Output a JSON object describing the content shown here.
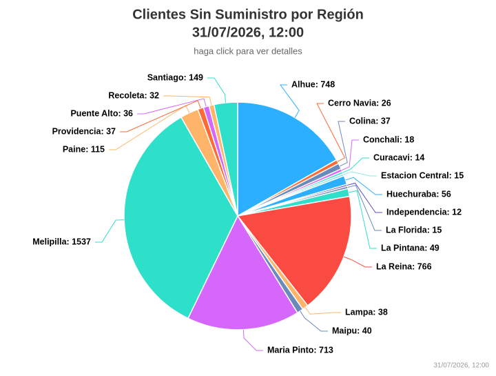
{
  "chart_data": {
    "type": "pie",
    "title_lines": [
      "Clientes Sin Suministro por Región",
      "31/07/2026, 12:00"
    ],
    "subtitle": "haga click para ver detalles",
    "credits": "31/07/2026, 12:00",
    "categories": [
      "Alhue",
      "Cerro Navia",
      "Colina",
      "Conchali",
      "Curacavi",
      "Estacion Central",
      "Huechuraba",
      "Independencia",
      "La Florida",
      "La Pintana",
      "La Reina",
      "Lampa",
      "Maipu",
      "Maria Pinto",
      "Melipilla",
      "Paine",
      "Providencia",
      "Puente Alto",
      "Recoleta",
      "Santiago"
    ],
    "values": [
      748,
      26,
      37,
      18,
      14,
      15,
      56,
      12,
      15,
      49,
      766,
      38,
      40,
      713,
      1537,
      115,
      37,
      36,
      32,
      149
    ],
    "value_labels": [
      "Alhue: 748",
      "Cerro Navia: 26",
      "Colina: 37",
      "Conchali: 18",
      "Curacavi: 14",
      "Estacion Central: 15",
      "Huechuraba: 56",
      "Independencia: 12",
      "La Florida: 15",
      "La Pintana: 49",
      "La Reina: 766",
      "Lampa: 38",
      "Maipu: 40",
      "Maria Pinto: 713",
      "Melipilla: 1537",
      "Paine: 115",
      "Providencia: 37",
      "Puente Alto: 36",
      "Recoleta: 32",
      "Santiago: 149"
    ],
    "colors": [
      "#2caffe",
      "#fe6a35",
      "#6b8abc",
      "#d568fb",
      "#2ee0ca",
      "#91e8e1",
      "#2caffe",
      "#544fc5",
      "#6b8abc",
      "#2ee0ca",
      "#fa4b42",
      "#feb56a",
      "#6b8abc",
      "#d568fb",
      "#2ee0ca",
      "#feb56a",
      "#fe6a35",
      "#d568fb",
      "#feb56a",
      "#2ee0ca"
    ]
  }
}
